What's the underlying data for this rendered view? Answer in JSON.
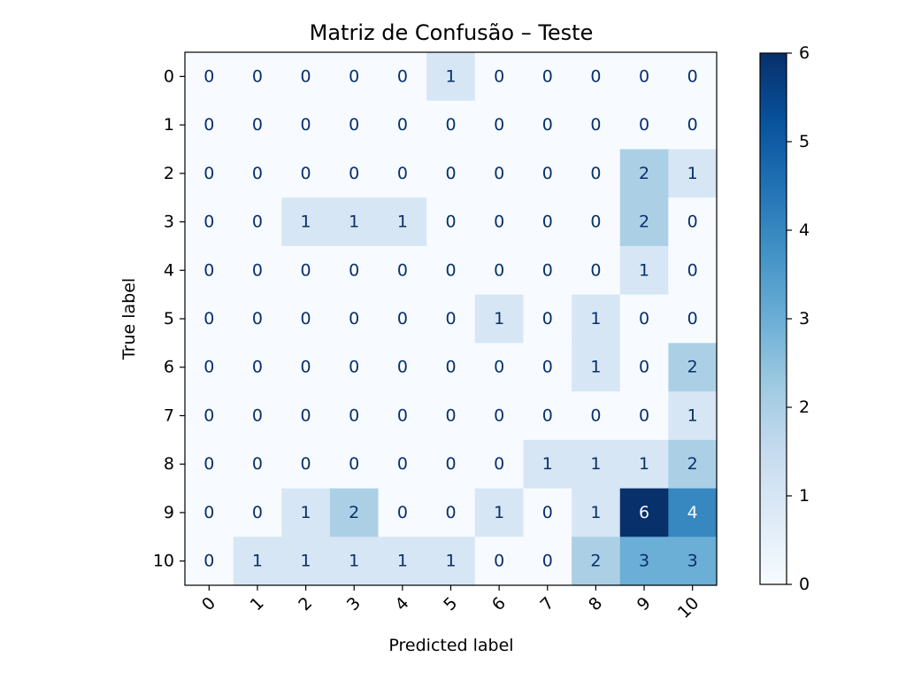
{
  "chart_data": {
    "type": "heatmap",
    "title": "Matriz de Confusão – Teste",
    "xlabel": "Predicted label",
    "ylabel": "True label",
    "x_categories": [
      "0",
      "1",
      "2",
      "3",
      "4",
      "5",
      "6",
      "7",
      "8",
      "9",
      "10"
    ],
    "y_categories": [
      "0",
      "1",
      "2",
      "3",
      "4",
      "5",
      "6",
      "7",
      "8",
      "9",
      "10"
    ],
    "matrix": [
      [
        0,
        0,
        0,
        0,
        0,
        1,
        0,
        0,
        0,
        0,
        0
      ],
      [
        0,
        0,
        0,
        0,
        0,
        0,
        0,
        0,
        0,
        0,
        0
      ],
      [
        0,
        0,
        0,
        0,
        0,
        0,
        0,
        0,
        0,
        2,
        1
      ],
      [
        0,
        0,
        1,
        1,
        1,
        0,
        0,
        0,
        0,
        2,
        0
      ],
      [
        0,
        0,
        0,
        0,
        0,
        0,
        0,
        0,
        0,
        1,
        0
      ],
      [
        0,
        0,
        0,
        0,
        0,
        0,
        1,
        0,
        1,
        0,
        0
      ],
      [
        0,
        0,
        0,
        0,
        0,
        0,
        0,
        0,
        1,
        0,
        2
      ],
      [
        0,
        0,
        0,
        0,
        0,
        0,
        0,
        0,
        0,
        0,
        1
      ],
      [
        0,
        0,
        0,
        0,
        0,
        0,
        0,
        1,
        1,
        1,
        2
      ],
      [
        0,
        0,
        1,
        2,
        0,
        0,
        1,
        0,
        1,
        6,
        4
      ],
      [
        0,
        1,
        1,
        1,
        1,
        1,
        0,
        0,
        2,
        3,
        3
      ]
    ],
    "colormap": "Blues",
    "colorbar": {
      "min": 0,
      "max": 6,
      "ticks": [
        "0",
        "1",
        "2",
        "3",
        "4",
        "5",
        "6"
      ]
    },
    "grid": false,
    "x_tick_rotation_deg": 45
  }
}
